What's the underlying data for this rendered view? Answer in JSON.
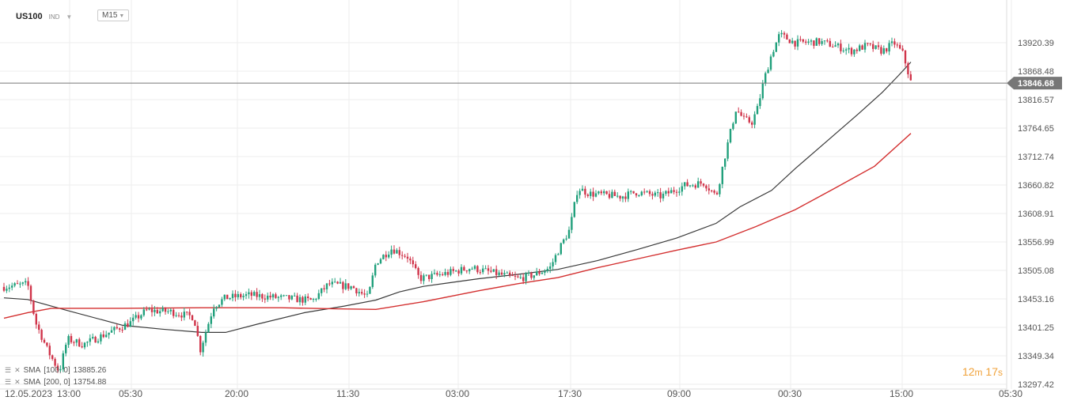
{
  "header": {
    "symbol": "US100",
    "type": "IND",
    "timeframe": "M15"
  },
  "indicators": [
    {
      "label": "SMA",
      "params": "[100, 0]",
      "value": "13885.26"
    },
    {
      "label": "SMA",
      "params": "[200, 0]",
      "value": "13754.88"
    }
  ],
  "timer": {
    "min": "12",
    "min_unit": "m",
    "sec": "17",
    "sec_unit": "s"
  },
  "colors": {
    "up": "#21a07c",
    "down": "#d0344a",
    "sma100": "#3a3a3a",
    "sma200": "#d32f2f",
    "price_tag": "#777777"
  },
  "chart_data": {
    "type": "candlestick",
    "current_price": "13846.68",
    "y_ticks": [
      "13920.39",
      "13868.48",
      "13816.57",
      "13764.65",
      "13712.74",
      "13660.82",
      "13608.91",
      "13556.99",
      "13505.08",
      "13453.16",
      "13401.25",
      "13349.34",
      "13297.42"
    ],
    "x_ticks": [
      "12.05.2023",
      "13:00",
      "05:30",
      "20:00",
      "11:30",
      "03:00",
      "17:30",
      "09:00",
      "00:30",
      "15:00",
      "05:30"
    ],
    "ylim": [
      13280,
      13960
    ],
    "grid": true,
    "sma": [
      {
        "name": "SMA [100, 0]",
        "points": [
          [
            0,
            13455
          ],
          [
            30,
            13452
          ],
          [
            80,
            13432
          ],
          [
            150,
            13405
          ],
          [
            200,
            13398
          ],
          [
            250,
            13392
          ],
          [
            280,
            13392
          ],
          [
            320,
            13407
          ],
          [
            380,
            13428
          ],
          [
            430,
            13440
          ],
          [
            470,
            13451
          ],
          [
            500,
            13466
          ],
          [
            530,
            13476
          ],
          [
            560,
            13482
          ],
          [
            600,
            13490
          ],
          [
            650,
            13498
          ],
          [
            700,
            13507
          ],
          [
            750,
            13523
          ],
          [
            800,
            13543
          ],
          [
            850,
            13564
          ],
          [
            900,
            13591
          ],
          [
            930,
            13621
          ],
          [
            970,
            13651
          ],
          [
            1000,
            13691
          ],
          [
            1040,
            13741
          ],
          [
            1080,
            13791
          ],
          [
            1110,
            13830
          ],
          [
            1130,
            13860
          ],
          [
            1146,
            13885
          ]
        ]
      },
      {
        "name": "SMA [200, 0]",
        "points": [
          [
            0,
            13418
          ],
          [
            30,
            13428
          ],
          [
            60,
            13436
          ],
          [
            150,
            13436
          ],
          [
            250,
            13437
          ],
          [
            350,
            13437
          ],
          [
            420,
            13435
          ],
          [
            470,
            13434
          ],
          [
            530,
            13448
          ],
          [
            600,
            13468
          ],
          [
            650,
            13481
          ],
          [
            700,
            13492
          ],
          [
            750,
            13510
          ],
          [
            800,
            13526
          ],
          [
            850,
            13542
          ],
          [
            900,
            13557
          ],
          [
            950,
            13585
          ],
          [
            1000,
            13616
          ],
          [
            1050,
            13655
          ],
          [
            1100,
            13695
          ],
          [
            1146,
            13755
          ]
        ]
      }
    ],
    "price_path": [
      [
        0,
        13475
      ],
      [
        30,
        13480
      ],
      [
        40,
        13410
      ],
      [
        55,
        13360
      ],
      [
        70,
        13320
      ],
      [
        80,
        13380
      ],
      [
        100,
        13370
      ],
      [
        130,
        13390
      ],
      [
        160,
        13410
      ],
      [
        180,
        13432
      ],
      [
        210,
        13430
      ],
      [
        240,
        13420
      ],
      [
        248,
        13360
      ],
      [
        265,
        13440
      ],
      [
        280,
        13455
      ],
      [
        310,
        13460
      ],
      [
        350,
        13455
      ],
      [
        390,
        13450
      ],
      [
        410,
        13480
      ],
      [
        440,
        13475
      ],
      [
        460,
        13455
      ],
      [
        470,
        13520
      ],
      [
        490,
        13545
      ],
      [
        510,
        13530
      ],
      [
        525,
        13490
      ],
      [
        560,
        13500
      ],
      [
        590,
        13510
      ],
      [
        620,
        13500
      ],
      [
        650,
        13490
      ],
      [
        670,
        13497
      ],
      [
        690,
        13510
      ],
      [
        700,
        13540
      ],
      [
        715,
        13580
      ],
      [
        725,
        13655
      ],
      [
        740,
        13645
      ],
      [
        780,
        13640
      ],
      [
        800,
        13648
      ],
      [
        830,
        13640
      ],
      [
        860,
        13660
      ],
      [
        885,
        13665
      ],
      [
        900,
        13640
      ],
      [
        912,
        13720
      ],
      [
        925,
        13800
      ],
      [
        935,
        13780
      ],
      [
        945,
        13775
      ],
      [
        952,
        13800
      ],
      [
        960,
        13850
      ],
      [
        970,
        13900
      ],
      [
        980,
        13935
      ],
      [
        1000,
        13920
      ],
      [
        1030,
        13922
      ],
      [
        1050,
        13915
      ],
      [
        1070,
        13905
      ],
      [
        1090,
        13915
      ],
      [
        1110,
        13905
      ],
      [
        1125,
        13920
      ],
      [
        1136,
        13900
      ],
      [
        1146,
        13848
      ]
    ]
  }
}
